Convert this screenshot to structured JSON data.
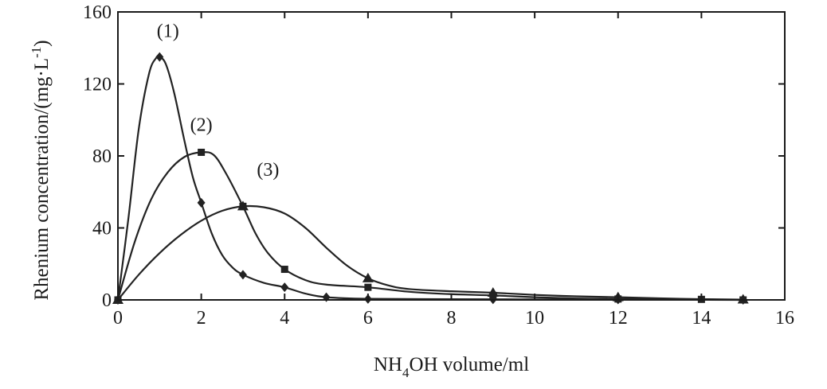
{
  "chart_data": {
    "type": "line",
    "title": "",
    "xlabel": {
      "prefix": "NH",
      "subscript": "4",
      "suffix": "OH volume/ml"
    },
    "ylabel": {
      "prefix": "Rhenium concentration/(mg·L",
      "superscript": "-1",
      "suffix": ")"
    },
    "xlim": [
      0,
      16
    ],
    "ylim": [
      0,
      160
    ],
    "xticks": [
      0,
      2,
      4,
      6,
      8,
      10,
      12,
      14,
      16
    ],
    "yticks": [
      0,
      40,
      80,
      120,
      160
    ],
    "grid": false,
    "series": [
      {
        "name": "(1)",
        "marker": "diamond",
        "label_at": [
          1.2,
          146
        ],
        "points": [
          [
            0,
            0
          ],
          [
            1,
            135
          ],
          [
            2,
            54
          ],
          [
            3,
            14
          ],
          [
            4,
            7
          ],
          [
            5,
            1.5
          ],
          [
            6,
            0.5
          ],
          [
            9,
            0.3
          ],
          [
            12,
            0.2
          ],
          [
            15,
            0
          ]
        ],
        "curve": [
          [
            0,
            0
          ],
          [
            0.25,
            45
          ],
          [
            0.5,
            95
          ],
          [
            0.75,
            126
          ],
          [
            0.92,
            134.5
          ],
          [
            1,
            135
          ],
          [
            1.15,
            131
          ],
          [
            1.35,
            115
          ],
          [
            1.6,
            88
          ],
          [
            1.8,
            68
          ],
          [
            2,
            54
          ],
          [
            2.25,
            37
          ],
          [
            2.5,
            25
          ],
          [
            2.75,
            18
          ],
          [
            3,
            14
          ],
          [
            3.5,
            9.5
          ],
          [
            4,
            7
          ],
          [
            4.5,
            3.5
          ],
          [
            5,
            1.5
          ],
          [
            6,
            0.6
          ],
          [
            8,
            0.4
          ],
          [
            10,
            0.3
          ],
          [
            12,
            0.2
          ],
          [
            15,
            0
          ]
        ]
      },
      {
        "name": "(2)",
        "marker": "square",
        "label_at": [
          2.0,
          94
        ],
        "points": [
          [
            0,
            0
          ],
          [
            2,
            82
          ],
          [
            3,
            52
          ],
          [
            4,
            17
          ],
          [
            6,
            7
          ],
          [
            9,
            2.5
          ],
          [
            12,
            0.5
          ],
          [
            14,
            0.3
          ],
          [
            15,
            0
          ]
        ],
        "curve": [
          [
            0,
            0
          ],
          [
            0.4,
            32
          ],
          [
            0.8,
            56
          ],
          [
            1.2,
            71
          ],
          [
            1.6,
            79.5
          ],
          [
            2,
            82
          ],
          [
            2.3,
            80.5
          ],
          [
            2.6,
            70
          ],
          [
            3,
            52
          ],
          [
            3.3,
            37
          ],
          [
            3.6,
            26
          ],
          [
            4,
            17
          ],
          [
            4.5,
            11
          ],
          [
            5,
            8.5
          ],
          [
            6,
            7
          ],
          [
            7,
            4.5
          ],
          [
            8,
            3.2
          ],
          [
            9,
            2.5
          ],
          [
            10,
            1.5
          ],
          [
            11,
            0.8
          ],
          [
            12,
            0.5
          ],
          [
            14,
            0.3
          ],
          [
            15,
            0
          ]
        ]
      },
      {
        "name": "(3)",
        "marker": "triangle",
        "label_at": [
          3.6,
          69
        ],
        "points": [
          [
            0,
            0
          ],
          [
            3,
            52
          ],
          [
            6,
            12
          ],
          [
            9,
            4
          ],
          [
            12,
            1.5
          ],
          [
            15,
            0.2
          ]
        ],
        "curve": [
          [
            0,
            0
          ],
          [
            0.5,
            14
          ],
          [
            1,
            26
          ],
          [
            1.5,
            36
          ],
          [
            2,
            44
          ],
          [
            2.5,
            49.5
          ],
          [
            3,
            52
          ],
          [
            3.5,
            51.5
          ],
          [
            4,
            48
          ],
          [
            4.5,
            40
          ],
          [
            5,
            29
          ],
          [
            5.5,
            19
          ],
          [
            6,
            12
          ],
          [
            6.5,
            8
          ],
          [
            7,
            6
          ],
          [
            8,
            4.8
          ],
          [
            9,
            4
          ],
          [
            10,
            2.8
          ],
          [
            11,
            2
          ],
          [
            12,
            1.5
          ],
          [
            13.5,
            0.6
          ],
          [
            15,
            0.2
          ]
        ]
      }
    ]
  }
}
